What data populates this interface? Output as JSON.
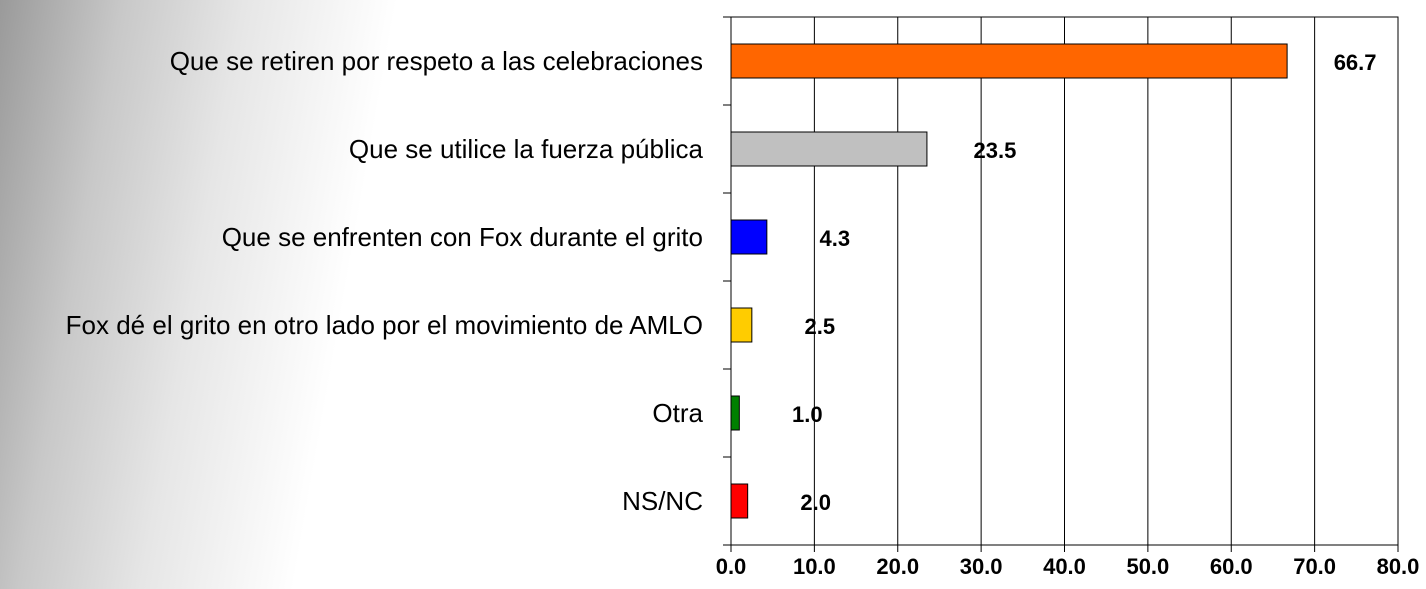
{
  "chart_data": {
    "type": "barh",
    "categories": [
      "Que se retiren por respeto a las celebraciones",
      "Que se utilice la fuerza pública",
      "Que se enfrenten con Fox durante el grito",
      "Fox dé el grito en otro lado por el movimiento de AMLO",
      "Otra",
      "NS/NC"
    ],
    "values": [
      66.7,
      23.5,
      4.3,
      2.5,
      1.0,
      2.0
    ],
    "value_labels": [
      "66.7",
      "23.5",
      "4.3",
      "2.5",
      "1.0",
      "2.0"
    ],
    "colors": [
      "#ff6600",
      "#c0c0c0",
      "#0000ff",
      "#ffcc00",
      "#008000",
      "#ff0000"
    ],
    "xlim": [
      0,
      80
    ],
    "xticks": [
      {
        "value": 0,
        "label": "0.0"
      },
      {
        "value": 10,
        "label": "10.0"
      },
      {
        "value": 20,
        "label": "20.0"
      },
      {
        "value": 30,
        "label": "30.0"
      },
      {
        "value": 40,
        "label": "40.0"
      },
      {
        "value": 50,
        "label": "50.0"
      },
      {
        "value": 60,
        "label": "60.0"
      },
      {
        "value": 70,
        "label": "70.0"
      },
      {
        "value": 80,
        "label": "80.0"
      }
    ],
    "grid": true
  }
}
